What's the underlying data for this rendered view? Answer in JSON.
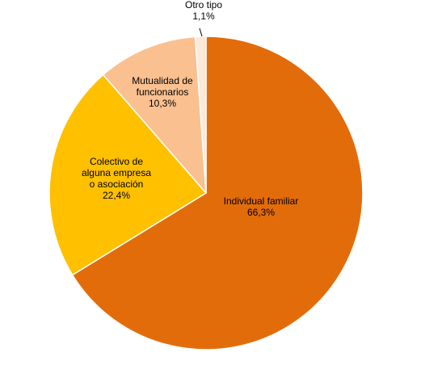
{
  "chart_data": {
    "type": "pie",
    "title": "",
    "start_angle_deg": 0,
    "direction": "clockwise",
    "slices": [
      {
        "label_lines": [
          "Individual familiar"
        ],
        "value_label": "66,3%",
        "value": 66.3,
        "color": "#E36C0A"
      },
      {
        "label_lines": [
          "Colectivo de",
          "alguna empresa",
          "o asociación"
        ],
        "value_label": "22,4%",
        "value": 22.4,
        "color": "#FFC000"
      },
      {
        "label_lines": [
          "Mutualidad de",
          "funcionarios"
        ],
        "value_label": "10,3%",
        "value": 10.3,
        "color": "#FAC090"
      },
      {
        "label_lines": [
          "Otro tipo"
        ],
        "value_label": "1,1%",
        "value": 1.1,
        "color": "#FDE9D9"
      }
    ],
    "legend": "none",
    "slice_edge_color": "#FFFFFF"
  }
}
